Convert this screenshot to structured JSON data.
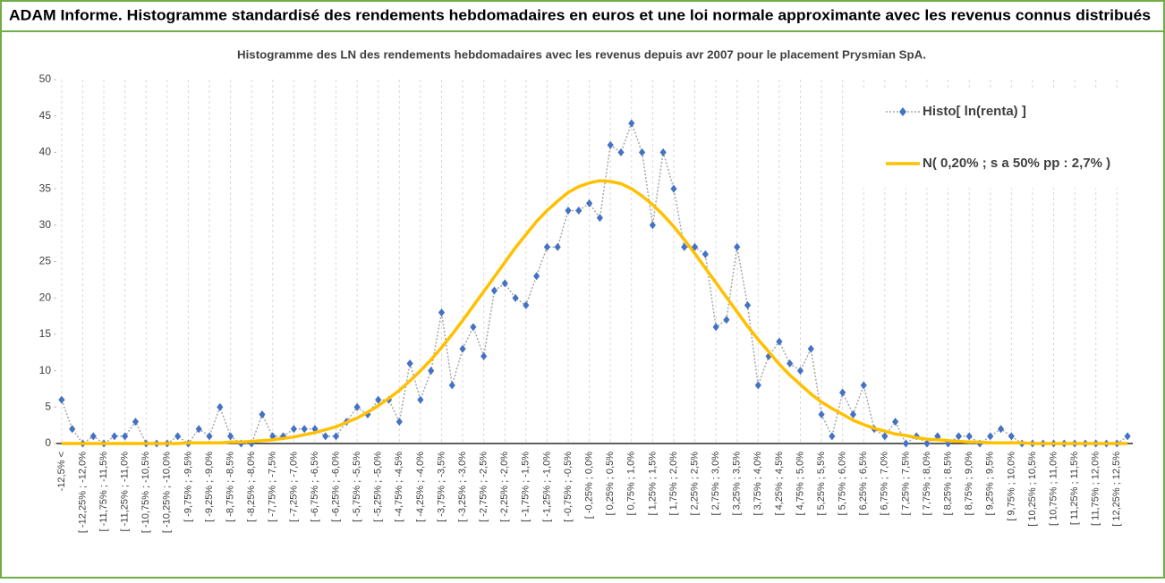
{
  "header": {
    "title": "ADAM Informe. Histogramme standardisé des rendements hebdomadaires en euros et une loi normale approximante avec les revenus connus distribués"
  },
  "chart_data": {
    "type": "line",
    "title": "Histogramme des LN des rendements hebdomadaires avec les revenus depuis avr 2007 pour le placement Prysmian SpA.",
    "categories": [
      "-12,5% <",
      null,
      "[ -12,25% ; -12,0%",
      null,
      "[ -11,75% ; -11,5%",
      null,
      "[ -11,25% ; -11,0%",
      null,
      "[ -10,75% ; -10,5%",
      null,
      "[ -10,25% ; -10,0%",
      null,
      "[ -9,75% ; -9,5%",
      null,
      "[ -9,25% ; -9,0%",
      null,
      "[ -8,75% ; -8,5%",
      null,
      "[ -8,25% ; -8,0%",
      null,
      "[ -7,75% ; -7,5%",
      null,
      "[ -7,25% ; -7,0%",
      null,
      "[ -6,75% ; -6,5%",
      null,
      "[ -6,25% ; -6,0%",
      null,
      "[ -5,75% ; -5,5%",
      null,
      "[ -5,25% ; -5,0%",
      null,
      "[ -4,75% ; -4,5%",
      null,
      "[ -4,25% ; -4,0%",
      null,
      "[ -3,75% ; -3,5%",
      null,
      "[ -3,25% ; -3,0%",
      null,
      "[ -2,75% ; -2,5%",
      null,
      "[ -2,25% ; -2,0%",
      null,
      "[ -1,75% ; -1,5%",
      null,
      "[ -1,25% ; -1,0%",
      null,
      "[ -0,75% ; -0,5%",
      null,
      "[ -0,25% ; 0,0%",
      null,
      "[ 0,25% ; 0,5%",
      null,
      "[ 0,75% ; 1,0%",
      null,
      "[ 1,25% ; 1,5%",
      null,
      "[ 1,75% ; 2,0%",
      null,
      "[ 2,25% ; 2,5%",
      null,
      "[ 2,75% ; 3,0%",
      null,
      "[ 3,25% ; 3,5%",
      null,
      "[ 3,75% ; 4,0%",
      null,
      "[ 4,25% ; 4,5%",
      null,
      "[ 4,75% ; 5,0%",
      null,
      "[ 5,25% ; 5,5%",
      null,
      "[ 5,75% ; 6,0%",
      null,
      "[ 6,25% ; 6,5%",
      null,
      "[ 6,75% ; 7,0%",
      null,
      "[ 7,25% ; 7,5%",
      null,
      "[ 7,75% ; 8,0%",
      null,
      "[ 8,25% ; 8,5%",
      null,
      "[ 8,75% ; 9,0%",
      null,
      "[ 9,25% ; 9,5%",
      null,
      "[ 9,75% ; 10,0%",
      null,
      "[ 10,25% ; 10,5%",
      null,
      "[ 10,75% ; 11,0%",
      null,
      "[ 11,25% ; 11,5%",
      null,
      "[ 11,75% ; 12,0%",
      null,
      "[ 12,25% ; 12,5%",
      null
    ],
    "series": [
      {
        "name": "Histo[ ln(renta) ]",
        "color": "#4472c4",
        "line_color": "#a6a6a6",
        "values": [
          6,
          2,
          0,
          1,
          0,
          1,
          1,
          3,
          0,
          0,
          0,
          1,
          0,
          2,
          1,
          5,
          1,
          0,
          0,
          4,
          1,
          1,
          2,
          2,
          2,
          1,
          1,
          3,
          5,
          4,
          6,
          6,
          3,
          11,
          6,
          10,
          18,
          8,
          13,
          16,
          12,
          21,
          22,
          20,
          19,
          23,
          27,
          27,
          32,
          32,
          33,
          31,
          41,
          40,
          44,
          40,
          30,
          40,
          35,
          27,
          27,
          26,
          16,
          17,
          27,
          19,
          8,
          12,
          14,
          11,
          10,
          13,
          4,
          1,
          7,
          4,
          8,
          2,
          1,
          3,
          0,
          1,
          0,
          1,
          0,
          1,
          1,
          0,
          1,
          2,
          1,
          0,
          0,
          0,
          0,
          0,
          0,
          0,
          0,
          0,
          0,
          1
        ]
      },
      {
        "name": "N( 0,20% ; s a 50% pp : 2,7% )",
        "color": "#ffc000",
        "values": [
          0,
          0,
          0,
          0,
          0,
          0,
          0,
          0,
          0,
          0,
          0,
          0,
          0.1,
          0.1,
          0.1,
          0.1,
          0.2,
          0.2,
          0.3,
          0.4,
          0.5,
          0.7,
          0.9,
          1.2,
          1.5,
          1.9,
          2.3,
          2.9,
          3.5,
          4.3,
          5.2,
          6.2,
          7.3,
          8.6,
          10.0,
          11.5,
          13.2,
          15.0,
          16.9,
          18.9,
          20.9,
          22.9,
          24.9,
          26.9,
          28.7,
          30.5,
          32.0,
          33.3,
          34.5,
          35.3,
          35.8,
          36.1,
          36.0,
          35.7,
          35.0,
          34.0,
          32.8,
          31.4,
          29.8,
          28.0,
          26.1,
          24.1,
          22.1,
          20.1,
          18.1,
          16.1,
          14.3,
          12.6,
          10.9,
          9.4,
          8.1,
          6.8,
          5.7,
          4.8,
          4.0,
          3.2,
          2.6,
          2.1,
          1.7,
          1.3,
          1.1,
          0.8,
          0.6,
          0.5,
          0.4,
          0.3,
          0.2,
          0.2,
          0.1,
          0.1,
          0.1,
          0.1,
          0,
          0,
          0,
          0,
          0,
          0,
          0,
          0,
          0,
          0
        ]
      }
    ],
    "ylim": [
      0,
      50
    ],
    "yticks": [
      0,
      5,
      10,
      15,
      20,
      25,
      30,
      35,
      40,
      45,
      50
    ],
    "legend": "upper right"
  }
}
